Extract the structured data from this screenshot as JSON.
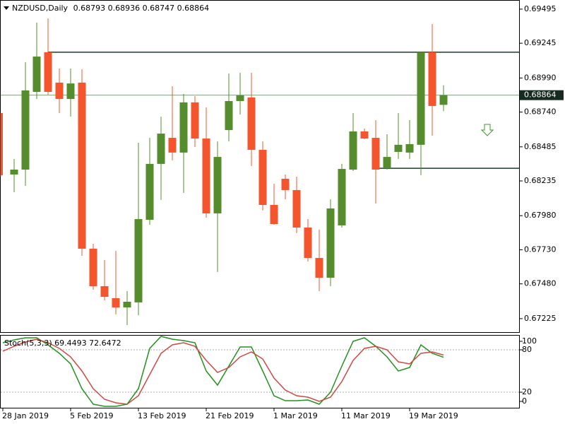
{
  "chart_data": [
    {
      "type": "candlestick",
      "symbol": "NZDUSD,Daily",
      "categories": [
        "28 Jan 2019",
        null,
        null,
        null,
        null,
        null,
        "5 Feb 2019",
        null,
        null,
        null,
        null,
        null,
        "13 Feb 2019",
        null,
        null,
        null,
        null,
        null,
        "21 Feb 2019",
        null,
        null,
        null,
        null,
        null,
        "1 Mar 2019",
        null,
        null,
        null,
        null,
        null,
        "11 Mar 2019",
        null,
        null,
        null,
        null,
        null,
        "19 Mar 2019",
        null,
        null,
        null
      ],
      "open": [
        0.68733,
        0.68282,
        0.68318,
        0.68888,
        0.69179,
        0.68956,
        0.68836,
        0.68956,
        0.67738,
        0.67463,
        0.67375,
        0.67307,
        0.67344,
        0.6795,
        0.6836,
        0.68551,
        0.68443,
        0.68811,
        0.68546,
        0.67997,
        0.68608,
        0.68821,
        0.68847,
        0.68463,
        0.68059,
        0.68251,
        0.68168,
        0.67893,
        0.6767,
        0.67525,
        0.67909,
        0.68318,
        0.68598,
        0.68551,
        0.68328,
        0.68448,
        0.68443,
        0.685,
        0.69179,
        0.68793
      ],
      "high": [
        0.68733,
        0.68396,
        0.69106,
        0.69396,
        0.69427,
        0.69059,
        0.69059,
        0.69054,
        0.67774,
        0.67655,
        0.67722,
        0.67427,
        0.68515,
        0.68551,
        0.68707,
        0.6893,
        0.68873,
        0.68857,
        0.68774,
        0.68525,
        0.69023,
        0.69028,
        0.69028,
        0.68525,
        0.68214,
        0.68282,
        0.68266,
        0.67955,
        0.67878,
        0.681,
        0.6836,
        0.68733,
        0.68619,
        0.68681,
        0.68577,
        0.68733,
        0.68681,
        0.69179,
        0.69386,
        0.68936
      ],
      "low": [
        0.68266,
        0.68152,
        0.68199,
        0.68836,
        0.68868,
        0.68733,
        0.68707,
        0.67686,
        0.67437,
        0.67359,
        0.67256,
        0.67178,
        0.6725,
        0.67914,
        0.68095,
        0.68386,
        0.68147,
        0.68484,
        0.67966,
        0.67567,
        0.68525,
        0.68722,
        0.68344,
        0.68018,
        0.67914,
        0.681,
        0.67852,
        0.67644,
        0.67427,
        0.67463,
        0.67893,
        0.68308,
        0.68541,
        0.68069,
        0.68318,
        0.68396,
        0.68396,
        0.68277,
        0.68567,
        0.68747
      ],
      "close": [
        0.68277,
        0.68318,
        0.68899,
        0.69147,
        0.68888,
        0.68836,
        0.6895,
        0.67738,
        0.67463,
        0.67385,
        0.67307,
        0.67349,
        0.67955,
        0.6836,
        0.68582,
        0.68443,
        0.68811,
        0.68546,
        0.67997,
        0.68411,
        0.68821,
        0.68862,
        0.68463,
        0.68059,
        0.67919,
        0.68168,
        0.67893,
        0.6767,
        0.67525,
        0.68033,
        0.68323,
        0.68598,
        0.68546,
        0.68318,
        0.68411,
        0.685,
        0.68505,
        0.69179,
        0.68785,
        0.68864
      ],
      "up_color": "#558d2c",
      "down_color": "#f4552d",
      "ylim": [
        0.67126,
        0.69562
      ],
      "yticks": [
        0.69495,
        0.69245,
        {
          "value": 0.6899,
          "label": "0.68990"
        },
        {
          "value": 0.6874,
          "label": "0.68740"
        },
        0.68485,
        0.68235,
        {
          "value": 0.6798,
          "label": "0.67980"
        },
        {
          "value": 0.6773,
          "label": "0.67730"
        },
        {
          "value": 0.6748,
          "label": "0.67480"
        },
        0.67225
      ],
      "lines": [
        {
          "value": 0.69179,
          "color": "#1d3b2c"
        },
        {
          "value": 0.68328,
          "color": "#1d3b2c"
        }
      ]
    },
    {
      "type": "line",
      "title": "Stoch(5,3,3)",
      "series": [
        {
          "color": "#23901f",
          "values": [
            90,
            94,
            97,
            97,
            87,
            75,
            60,
            25,
            3,
            0,
            0,
            3,
            25,
            82,
            99,
            95,
            93,
            90,
            50,
            30,
            57,
            84,
            84,
            50,
            15,
            8,
            8,
            9,
            3,
            20,
            57,
            92,
            97,
            85,
            70,
            50,
            55,
            87,
            75,
            69.4493
          ]
        },
        {
          "color": "#cc4a44",
          "values": [
            78,
            85,
            91,
            95,
            90,
            82,
            70,
            50,
            25,
            10,
            5,
            3,
            15,
            45,
            75,
            87,
            90,
            85,
            65,
            48,
            55,
            70,
            77,
            67,
            40,
            23,
            15,
            13,
            7,
            13,
            35,
            65,
            82,
            85,
            80,
            63,
            60,
            75,
            77,
            72.6472
          ]
        }
      ],
      "ylim": [
        0,
        100
      ],
      "yticks": [
        100,
        80,
        20,
        0
      ],
      "levels": [
        80,
        20
      ]
    }
  ]
}
